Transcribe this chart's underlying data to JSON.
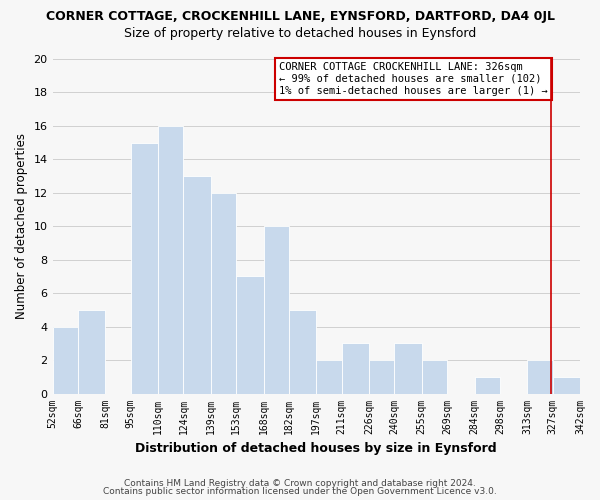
{
  "title": "CORNER COTTAGE, CROCKENHILL LANE, EYNSFORD, DARTFORD, DA4 0JL",
  "subtitle": "Size of property relative to detached houses in Eynsford",
  "xlabel": "Distribution of detached houses by size in Eynsford",
  "ylabel": "Number of detached properties",
  "footer_line1": "Contains HM Land Registry data © Crown copyright and database right 2024.",
  "footer_line2": "Contains public sector information licensed under the Open Government Licence v3.0.",
  "bin_edges": [
    52,
    66,
    81,
    95,
    110,
    124,
    139,
    153,
    168,
    182,
    197,
    211,
    226,
    240,
    255,
    269,
    284,
    298,
    313,
    327,
    342
  ],
  "bin_labels": [
    "52sqm",
    "66sqm",
    "81sqm",
    "95sqm",
    "110sqm",
    "124sqm",
    "139sqm",
    "153sqm",
    "168sqm",
    "182sqm",
    "197sqm",
    "211sqm",
    "226sqm",
    "240sqm",
    "255sqm",
    "269sqm",
    "284sqm",
    "298sqm",
    "313sqm",
    "327sqm",
    "342sqm"
  ],
  "counts": [
    4,
    5,
    0,
    15,
    16,
    13,
    12,
    7,
    10,
    5,
    2,
    3,
    2,
    3,
    2,
    0,
    1,
    0,
    2,
    1
  ],
  "bar_color": "#c8d9ec",
  "bar_edge_color": "#ffffff",
  "grid_color": "#d0d0d0",
  "property_value": 326,
  "vline_color": "#cc0000",
  "annotation_line1": "CORNER COTTAGE CROCKENHILL LANE: 326sqm",
  "annotation_line2": "← 99% of detached houses are smaller (102)",
  "annotation_line3": "1% of semi-detached houses are larger (1) →",
  "annotation_box_edge_color": "#cc0000",
  "ylim": [
    0,
    20
  ],
  "yticks": [
    0,
    2,
    4,
    6,
    8,
    10,
    12,
    14,
    16,
    18,
    20
  ],
  "background_color": "#f7f7f7",
  "title_fontsize": 9,
  "subtitle_fontsize": 9
}
